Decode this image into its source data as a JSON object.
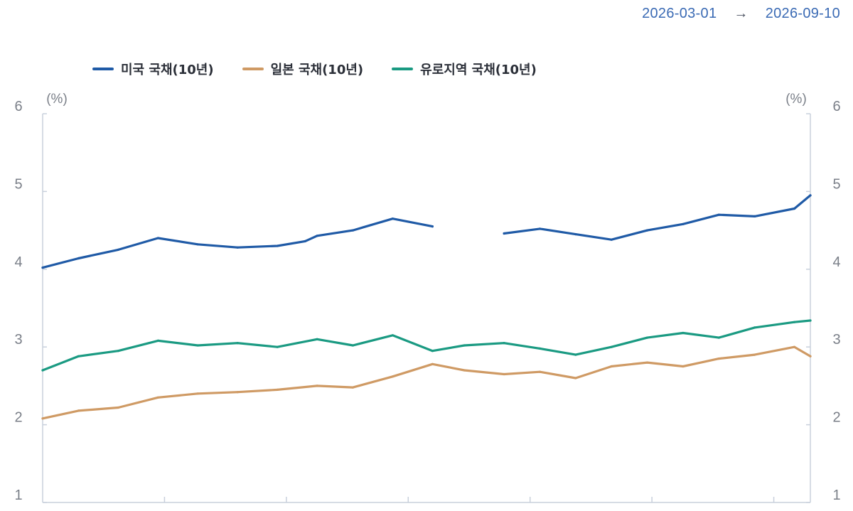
{
  "header": {
    "date_start": "2026-03-01",
    "arrow": "→",
    "date_end": "2026-09-10"
  },
  "chart_data": {
    "type": "line",
    "title": "",
    "left_unit": "(%)",
    "right_unit": "(%)",
    "xlim": [
      "2026-03-01",
      "2026-09-10"
    ],
    "ylim": [
      1,
      6
    ],
    "yticks": [
      1,
      2,
      3,
      4,
      5,
      6
    ],
    "grid": false,
    "legend_position": "top",
    "series": [
      {
        "name": "미국 국채(10년)",
        "color": "#1f5aa6",
        "x": [
          "2026-03-01",
          "2026-03-10",
          "2026-03-20",
          "2026-03-30",
          "2026-04-09",
          "2026-04-19",
          "2026-04-29",
          "2026-05-06",
          "2026-05-09",
          "2026-05-18",
          "2026-05-28",
          "2026-06-07",
          "2026-06-15",
          "2026-06-25",
          "2026-07-04",
          "2026-07-13",
          "2026-07-22",
          "2026-07-31",
          "2026-08-09",
          "2026-08-18",
          "2026-08-27",
          "2026-09-06",
          "2026-09-10"
        ],
        "values": [
          4.02,
          4.14,
          4.25,
          4.4,
          4.32,
          4.28,
          4.3,
          4.36,
          4.43,
          4.5,
          4.65,
          4.55,
          null,
          4.46,
          4.52,
          4.45,
          4.38,
          4.5,
          4.58,
          4.7,
          4.68,
          4.78,
          4.95
        ]
      },
      {
        "name": "일본 국채(10년)",
        "color": "#cf9a64",
        "x": [
          "2026-03-01",
          "2026-03-10",
          "2026-03-20",
          "2026-03-30",
          "2026-04-09",
          "2026-04-19",
          "2026-04-29",
          "2026-05-09",
          "2026-05-18",
          "2026-05-28",
          "2026-06-07",
          "2026-06-15",
          "2026-06-25",
          "2026-07-04",
          "2026-07-13",
          "2026-07-22",
          "2026-07-31",
          "2026-08-09",
          "2026-08-18",
          "2026-08-27",
          "2026-09-06",
          "2026-09-10"
        ],
        "values": [
          2.08,
          2.18,
          2.22,
          2.35,
          2.4,
          2.42,
          2.45,
          2.5,
          2.48,
          2.62,
          2.78,
          2.7,
          2.65,
          2.68,
          2.6,
          2.75,
          2.8,
          2.75,
          2.85,
          2.9,
          3.0,
          2.88
        ]
      },
      {
        "name": "유로지역 국채(10년)",
        "color": "#1a9a82",
        "x": [
          "2026-03-01",
          "2026-03-10",
          "2026-03-20",
          "2026-03-30",
          "2026-04-09",
          "2026-04-19",
          "2026-04-29",
          "2026-05-09",
          "2026-05-18",
          "2026-05-28",
          "2026-06-07",
          "2026-06-15",
          "2026-06-25",
          "2026-07-04",
          "2026-07-13",
          "2026-07-22",
          "2026-07-31",
          "2026-08-09",
          "2026-08-18",
          "2026-08-27",
          "2026-09-06",
          "2026-09-10"
        ],
        "values": [
          2.7,
          2.88,
          2.95,
          3.08,
          3.02,
          3.05,
          3.0,
          3.1,
          3.02,
          3.15,
          2.95,
          3.02,
          3.05,
          2.98,
          2.9,
          3.0,
          3.12,
          3.18,
          3.12,
          3.25,
          3.32,
          3.34
        ]
      }
    ]
  }
}
